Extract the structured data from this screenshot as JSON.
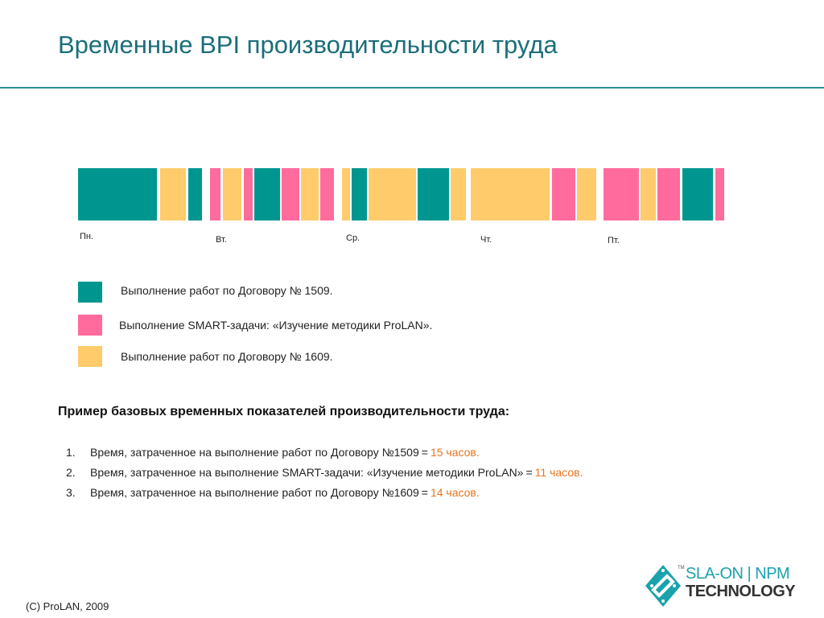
{
  "title": "Временные BPI производительности труда",
  "colors": {
    "contract_1509": "#009690",
    "smart_task": "#ff6b9c",
    "contract_1609": "#ffcb6b",
    "accent_value": "#e8741f",
    "title": "#1a6e7a"
  },
  "chart_data": {
    "type": "timeline",
    "days": [
      "Пн.",
      "Вт.",
      "Ср.",
      "Чт.",
      "Пт."
    ],
    "segments": [
      {
        "category": "contract_1509",
        "start": 0.0,
        "end": 12.2
      },
      {
        "category": "contract_1609",
        "start": 12.7,
        "end": 16.7
      },
      {
        "category": "contract_1509",
        "start": 17.0,
        "end": 19.2
      },
      {
        "category": "smart_task",
        "start": 20.4,
        "end": 22.0
      },
      {
        "category": "contract_1609",
        "start": 22.4,
        "end": 25.3
      },
      {
        "category": "smart_task",
        "start": 25.6,
        "end": 27.0
      },
      {
        "category": "contract_1509",
        "start": 27.3,
        "end": 31.2
      },
      {
        "category": "smart_task",
        "start": 31.5,
        "end": 34.2
      },
      {
        "category": "contract_1609",
        "start": 34.5,
        "end": 37.2
      },
      {
        "category": "smart_task",
        "start": 37.5,
        "end": 39.6
      },
      {
        "category": "contract_1609",
        "start": 40.8,
        "end": 42.1
      },
      {
        "category": "contract_1509",
        "start": 42.4,
        "end": 44.7
      },
      {
        "category": "contract_1609",
        "start": 45.0,
        "end": 52.3
      },
      {
        "category": "contract_1509",
        "start": 52.6,
        "end": 57.4
      },
      {
        "category": "contract_1609",
        "start": 57.7,
        "end": 60.0
      },
      {
        "category": "contract_1609",
        "start": 60.8,
        "end": 73.0
      },
      {
        "category": "smart_task",
        "start": 73.3,
        "end": 76.9
      },
      {
        "category": "contract_1609",
        "start": 77.2,
        "end": 80.2
      },
      {
        "category": "smart_task",
        "start": 81.3,
        "end": 86.8
      },
      {
        "category": "contract_1609",
        "start": 87.1,
        "end": 89.4
      },
      {
        "category": "smart_task",
        "start": 89.7,
        "end": 93.2
      },
      {
        "category": "contract_1509",
        "start": 93.5,
        "end": 98.3
      },
      {
        "category": "smart_task",
        "start": 98.6,
        "end": 100.0
      }
    ],
    "range": [
      0,
      100
    ]
  },
  "legend": [
    {
      "category": "contract_1509",
      "label": "Выполнение работ по Договору № 1509."
    },
    {
      "category": "smart_task",
      "label": "Выполнение SMART-задачи: «Изучение методики ProLAN»."
    },
    {
      "category": "contract_1609",
      "label": "Выполнение работ по Договору № 1609."
    }
  ],
  "section_heading": "Пример базовых временных показателей производительности труда:",
  "metrics": [
    {
      "num": "1.",
      "text": "Время, затраченное на выполнение работ по Договору №1509",
      "eq": "=",
      "value": "15 часов."
    },
    {
      "num": "2.",
      "text": "Время, затраченное на выполнение SMART-задачи: «Изучение методики ProLAN»",
      "eq": "=",
      "value": "11 часов."
    },
    {
      "num": "3.",
      "text": "Время, затраченное на выполнение работ по Договору №1609",
      "eq": "=",
      "value": "14 часов."
    }
  ],
  "copyright": "(C) ProLAN, 2009",
  "logo": {
    "tm": "TM",
    "line1": "SLA-ON | NPM",
    "line2": "TECHNOLOGY",
    "icon": "diamond-chip-icon"
  }
}
